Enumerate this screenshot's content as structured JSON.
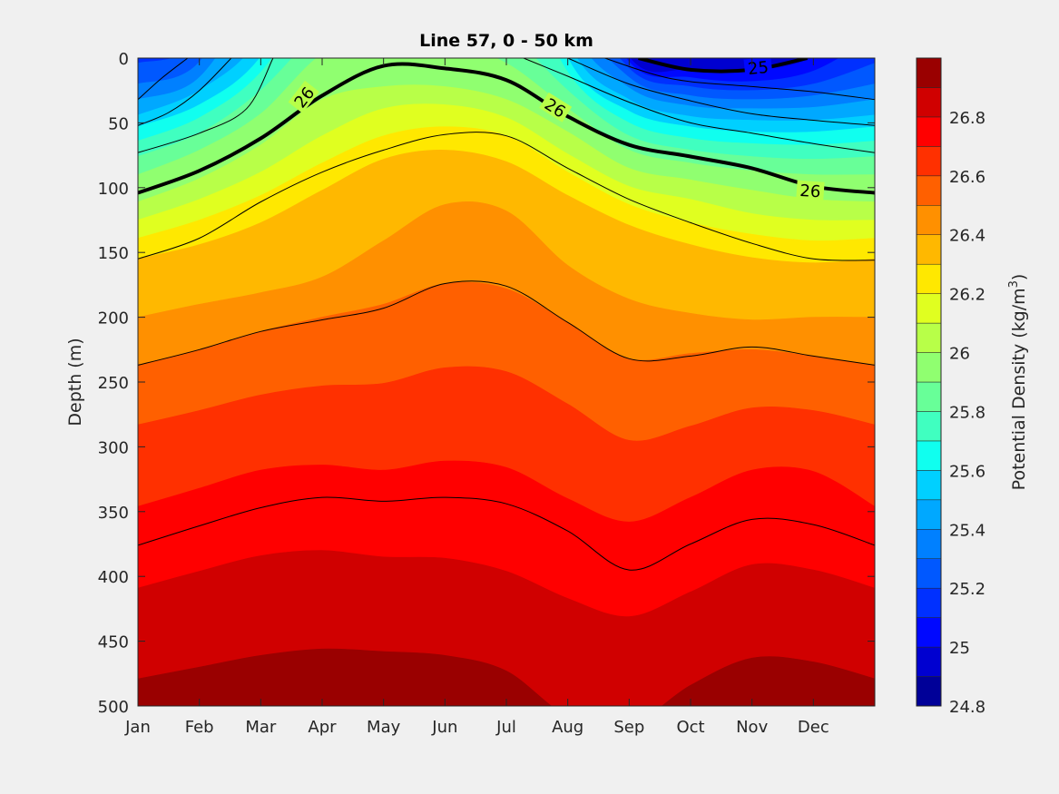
{
  "chart_data": {
    "type": "contour",
    "title": "Line 57, 0 - 50 km",
    "xlabel": "",
    "ylabel": "Depth (m)",
    "colorbar_label": "Potential Density (kg/m",
    "colorbar_label_sup": "3",
    "colorbar_label_end": ")",
    "x_tick_labels": [
      "Jan",
      "Feb",
      "Mar",
      "Apr",
      "May",
      "Jun",
      "Jul",
      "Aug",
      "Sep",
      "Oct",
      "Nov",
      "Dec"
    ],
    "x_range_months": [
      0,
      12
    ],
    "y_ticks": [
      0,
      50,
      100,
      150,
      200,
      250,
      300,
      350,
      400,
      450,
      500
    ],
    "y_range": [
      0,
      500
    ],
    "y_reversed": true,
    "color_range": [
      24.8,
      27.0
    ],
    "colorbar_ticks": [
      "24.8",
      "25",
      "25.2",
      "25.4",
      "25.6",
      "25.8",
      "26",
      "26.2",
      "26.4",
      "26.6",
      "26.8"
    ],
    "colorbar_tick_values": [
      24.8,
      25.0,
      25.2,
      25.4,
      25.6,
      25.8,
      26.0,
      26.2,
      26.4,
      26.6,
      26.8
    ],
    "band_levels": [
      24.8,
      24.9,
      25.0,
      25.1,
      25.2,
      25.3,
      25.4,
      25.5,
      25.6,
      25.7,
      25.8,
      25.9,
      26.0,
      26.1,
      26.2,
      26.3,
      26.4,
      26.5,
      26.6,
      26.7,
      26.8,
      26.9
    ],
    "band_colors": [
      "#000098",
      "#0000d0",
      "#0008ff",
      "#0030ff",
      "#0058ff",
      "#0080ff",
      "#00a8ff",
      "#00d0ff",
      "#10ffef",
      "#40ffc0",
      "#68ff98",
      "#90ff70",
      "#b8ff48",
      "#e0ff20",
      "#ffe800",
      "#ffb800",
      "#ff9000",
      "#ff6000",
      "#ff3000",
      "#ff0000",
      "#d00000",
      "#9a0000"
    ],
    "sample_months": [
      0,
      1,
      2,
      3,
      4,
      5,
      6,
      7,
      8,
      9,
      10,
      11,
      12
    ],
    "isopycnal_depths": [
      {
        "level": 24.9,
        "depth": [
          -59,
          -73,
          -171,
          -276,
          -325,
          -339,
          -325,
          -157,
          -59,
          -59,
          -59,
          -59,
          -59
        ]
      },
      {
        "level": 25.0,
        "depth": [
          -38,
          -52,
          -150,
          -255,
          -304,
          -318,
          -304,
          -115,
          -1,
          9,
          10,
          -1,
          -38
        ]
      },
      {
        "level": 25.1,
        "depth": [
          -17,
          -31,
          -129,
          -234,
          -283,
          -297,
          -283,
          -94,
          3,
          15,
          18,
          10,
          -17
        ]
      },
      {
        "level": 25.2,
        "depth": [
          4,
          -13,
          -108,
          -213,
          -262,
          -276,
          -262,
          -73,
          8,
          22,
          25,
          20,
          4
        ]
      },
      {
        "level": 25.3,
        "depth": [
          20,
          3,
          -87,
          -185,
          -234,
          -248,
          -234,
          -52,
          15,
          29,
          32,
          29,
          20
        ]
      },
      {
        "level": 25.4,
        "depth": [
          32,
          15,
          -59,
          -157,
          -206,
          -220,
          -206,
          -31,
          23,
          37,
          39,
          38,
          32
        ]
      },
      {
        "level": 25.5,
        "depth": [
          44,
          25,
          -17,
          -122,
          -171,
          -185,
          -171,
          -13,
          32,
          45,
          48,
          48,
          44
        ]
      },
      {
        "level": 25.6,
        "depth": [
          53,
          36,
          -1,
          -87,
          -136,
          -150,
          -136,
          0,
          41,
          53,
          57,
          57,
          53
        ]
      },
      {
        "level": 25.7,
        "depth": [
          64,
          46,
          11,
          -59,
          -101,
          -115,
          -87,
          11,
          50,
          62,
          66,
          67,
          64
        ]
      },
      {
        "level": 25.8,
        "depth": [
          76,
          58,
          25,
          -24,
          -59,
          -73,
          -24,
          25,
          60,
          71,
          76,
          78,
          76
        ]
      },
      {
        "level": 25.9,
        "depth": [
          90,
          71,
          43,
          -3,
          -17,
          -13,
          4,
          39,
          71,
          81,
          87,
          90,
          90
        ]
      },
      {
        "level": 26.0,
        "depth": [
          111,
          93,
          67,
          32,
          22,
          22,
          32,
          57,
          85,
          94,
          102,
          109,
          111
        ]
      },
      {
        "level": 26.1,
        "depth": [
          125,
          109,
          88,
          60,
          39,
          36,
          46,
          74,
          99,
          109,
          120,
          125,
          125
        ]
      },
      {
        "level": 26.2,
        "depth": [
          139,
          125,
          106,
          81,
          60,
          53,
          60,
          88,
          113,
          127,
          136,
          141,
          139
        ]
      },
      {
        "level": 26.3,
        "depth": [
          155,
          144,
          127,
          102,
          78,
          71,
          80,
          106,
          129,
          144,
          154,
          158,
          155
        ]
      },
      {
        "level": 26.4,
        "depth": [
          200,
          190,
          181,
          169,
          141,
          113,
          118,
          160,
          186,
          197,
          202,
          200,
          200
        ]
      },
      {
        "level": 26.5,
        "depth": [
          237,
          225,
          211,
          200,
          190,
          174,
          178,
          204,
          232,
          228,
          225,
          230,
          237
        ]
      },
      {
        "level": 26.6,
        "depth": [
          283,
          272,
          260,
          253,
          251,
          239,
          242,
          267,
          295,
          284,
          270,
          272,
          283
        ]
      },
      {
        "level": 26.7,
        "depth": [
          346,
          332,
          318,
          314,
          318,
          311,
          316,
          340,
          358,
          339,
          318,
          319,
          346
        ]
      },
      {
        "level": 26.8,
        "depth": [
          409,
          396,
          384,
          380,
          385,
          386,
          396,
          417,
          431,
          412,
          391,
          395,
          409
        ]
      },
      {
        "level": 26.9,
        "depth": [
          479,
          470,
          461,
          456,
          458,
          461,
          473,
          508,
          515,
          484,
          463,
          466,
          479
        ]
      }
    ],
    "contour_lines": [
      {
        "thick": true,
        "months": [
          0,
          1,
          2,
          3,
          4,
          5,
          6,
          7,
          8,
          9,
          10,
          11,
          12
        ],
        "depth": [
          104,
          87,
          62,
          29,
          6,
          8,
          17,
          45,
          67,
          76,
          85,
          99,
          104
        ]
      },
      {
        "thick": true,
        "months": [
          8.15,
          9,
          10,
          10.9
        ],
        "depth": [
          0,
          9,
          9,
          0
        ]
      },
      {
        "thick": false,
        "months": [
          0,
          0.4,
          0.81
        ],
        "depth": [
          32,
          15,
          0
        ]
      },
      {
        "thick": false,
        "months": [
          7.6,
          8.69,
          10,
          11,
          12
        ],
        "depth": [
          0,
          16,
          22,
          26,
          32
        ]
      },
      {
        "thick": false,
        "months": [
          0,
          0.5,
          1,
          1.52
        ],
        "depth": [
          52,
          42,
          25,
          0
        ]
      },
      {
        "thick": false,
        "months": [
          7.0,
          8,
          9,
          10,
          11,
          12
        ],
        "depth": [
          0,
          20,
          33,
          43,
          48,
          52
        ]
      },
      {
        "thick": false,
        "months": [
          0,
          1,
          1.77,
          2.2
        ],
        "depth": [
          73,
          58,
          39,
          0
        ]
      },
      {
        "thick": false,
        "months": [
          6.28,
          7,
          8,
          9,
          10,
          11,
          12
        ],
        "depth": [
          0,
          14,
          34,
          50,
          58,
          66,
          73
        ]
      },
      {
        "thick": false,
        "months": [
          0,
          1,
          2,
          3,
          4,
          5,
          6,
          7,
          8,
          9,
          10,
          11,
          12
        ],
        "depth": [
          155,
          139,
          111,
          88,
          71,
          59,
          60,
          85,
          109,
          127,
          143,
          155,
          156
        ]
      },
      {
        "thick": false,
        "months": [
          0,
          1,
          2,
          3,
          4,
          5,
          6,
          7,
          8,
          9,
          10,
          11,
          12
        ],
        "depth": [
          237,
          225,
          211,
          202,
          193,
          174,
          176,
          204,
          232,
          230,
          223,
          230,
          237
        ]
      },
      {
        "thick": false,
        "months": [
          0,
          1,
          2,
          3,
          4,
          5,
          6,
          7,
          8,
          9,
          10,
          11,
          12
        ],
        "depth": [
          376,
          361,
          347,
          339,
          342,
          339,
          344,
          365,
          395,
          375,
          356,
          360,
          376
        ]
      }
    ],
    "contour_labels": [
      {
        "text": "26",
        "month": 2.7,
        "depth": 30,
        "angle": -52,
        "bg": "#b8ff48"
      },
      {
        "text": "26",
        "month": 6.8,
        "depth": 38,
        "angle": 32,
        "bg": "#b8ff48"
      },
      {
        "text": "26",
        "month": 10.95,
        "depth": 102,
        "angle": 4,
        "bg": "#b8ff48"
      },
      {
        "text": "25",
        "month": 10.1,
        "depth": 7,
        "angle": -6,
        "bg": "#0008ff"
      }
    ]
  }
}
